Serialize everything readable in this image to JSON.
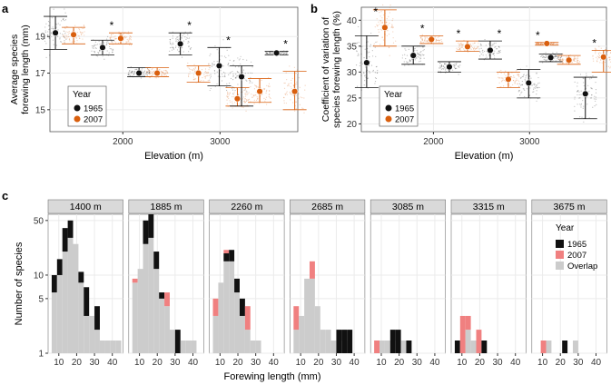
{
  "colors": {
    "y1965": "#111111",
    "y2007": "#d95f0e",
    "overlap": "#cccccc",
    "only2007": "#f08080",
    "strip": "#d9d9d9",
    "grid": "#ebebeb"
  },
  "chart_data": [
    {
      "panel": "a",
      "type": "scatter",
      "xlabel": "Elevation (m)",
      "ylabel_lines": [
        "Average species",
        "forewing length (mm)"
      ],
      "xlim": [
        1250,
        3800
      ],
      "ylim": [
        13.8,
        20.6
      ],
      "xticks": [
        2000,
        3000
      ],
      "yticks": [
        15,
        17,
        19
      ],
      "legend": {
        "title": "Year",
        "position": "bottom-left"
      },
      "series": [
        {
          "name": "1965",
          "x": [
            1400,
            1885,
            2260,
            2685,
            3085,
            3315,
            3675
          ],
          "mean": [
            19.2,
            18.4,
            17.0,
            18.6,
            17.4,
            16.8,
            18.1
          ],
          "ci_low": [
            18.3,
            18.0,
            16.8,
            18.0,
            16.3,
            15.2,
            18.0
          ],
          "ci_high": [
            20.1,
            18.8,
            17.3,
            19.2,
            18.4,
            17.4,
            18.2
          ]
        },
        {
          "name": "2007",
          "x": [
            1400,
            1885,
            2260,
            2685,
            3085,
            3315,
            3675
          ],
          "mean": [
            19.1,
            18.9,
            17.0,
            17.0,
            15.6,
            16.0,
            16.0
          ],
          "ci_low": [
            18.6,
            18.6,
            16.8,
            16.5,
            15.2,
            15.4,
            15.0
          ],
          "ci_high": [
            19.5,
            19.2,
            17.3,
            17.4,
            16.2,
            16.7,
            17.1
          ]
        }
      ],
      "significant": [
        false,
        true,
        false,
        true,
        true,
        false,
        true
      ],
      "star": "*"
    },
    {
      "panel": "b",
      "type": "scatter",
      "xlabel": "Elevation (m)",
      "ylabel_lines": [
        "Coefficient of variation of",
        "species forewing length (%)"
      ],
      "xlim": [
        1250,
        3800
      ],
      "ylim": [
        18.5,
        42.5
      ],
      "xticks": [
        2000,
        3000
      ],
      "yticks": [
        20,
        25,
        30,
        35,
        40
      ],
      "legend": {
        "title": "Year",
        "position": "bottom-left"
      },
      "series": [
        {
          "name": "1965",
          "x": [
            1400,
            1885,
            2260,
            2685,
            3085,
            3315,
            3675
          ],
          "mean": [
            31.8,
            33.2,
            31.0,
            34.2,
            27.9,
            32.8,
            25.8
          ],
          "ci_low": [
            27.0,
            31.5,
            30.0,
            32.5,
            25.0,
            32.0,
            21.0
          ],
          "ci_high": [
            37.0,
            35.0,
            32.0,
            36.0,
            30.5,
            33.5,
            29.0
          ]
        },
        {
          "name": "2007",
          "x": [
            1400,
            1885,
            2260,
            2685,
            3085,
            3315,
            3675
          ],
          "mean": [
            38.6,
            36.3,
            34.9,
            28.6,
            35.5,
            32.3,
            32.9
          ],
          "ci_low": [
            35.0,
            35.5,
            34.0,
            27.0,
            35.2,
            31.5,
            30.0
          ],
          "ci_high": [
            42.0,
            37.0,
            36.0,
            30.0,
            35.7,
            33.2,
            34.2
          ]
        }
      ],
      "significant": [
        true,
        true,
        true,
        true,
        true,
        false,
        true
      ],
      "star": "*"
    },
    {
      "panel": "c",
      "type": "bar",
      "subtype": "faceted histogram (log scale)",
      "xlabel": "Forewing length (mm)",
      "ylabel": "Number of species",
      "facets": [
        "1400 m",
        "1885 m",
        "2260 m",
        "2685 m",
        "3085 m",
        "3315 m",
        "3675 m"
      ],
      "xticks": [
        10,
        20,
        30,
        40
      ],
      "xlim": [
        4,
        46
      ],
      "yticks": [
        1,
        5,
        10,
        50
      ],
      "ylim": [
        1,
        60
      ],
      "bin_starts": [
        6,
        9,
        12,
        15,
        18,
        21,
        24,
        27,
        30,
        33,
        36,
        39,
        42
      ],
      "bin_width": 3,
      "legend": {
        "title": "Year",
        "entries": [
          "1965",
          "2007",
          "Overlap"
        ],
        "position": "right"
      },
      "series": [
        {
          "name": "Overlap",
          "values": [
            [
              6,
              10,
              20,
              30,
              25,
              8,
              3,
              3,
              2,
              1,
              1,
              1,
              1
            ],
            [
              8,
              12,
              25,
              30,
              12,
              5,
              4,
              2,
              1,
              1,
              1,
              1,
              0
            ],
            [
              3,
              8,
              15,
              15,
              6,
              3,
              2,
              1,
              1,
              0,
              0,
              0,
              0
            ],
            [
              2,
              3,
              9,
              9,
              4,
              2,
              2,
              1,
              1,
              1,
              0,
              0,
              0
            ],
            [
              0,
              1,
              1,
              1,
              1,
              1,
              0,
              0,
              0,
              0,
              0,
              0,
              0
            ],
            [
              0,
              1,
              2,
              1,
              1,
              0,
              0,
              0,
              0,
              0,
              0,
              0,
              0
            ],
            [
              0,
              0,
              1,
              0,
              0,
              0,
              0,
              1,
              0,
              0,
              0,
              0,
              0
            ]
          ]
        },
        {
          "name": "1965",
          "values": [
            [
              4,
              6,
              20,
              20,
              0,
              3,
              4,
              0,
              2,
              0,
              0,
              0,
              0
            ],
            [
              0,
              0,
              25,
              30,
              8,
              1,
              0,
              0,
              1,
              0,
              0,
              0,
              0
            ],
            [
              0,
              0,
              4,
              6,
              3,
              2,
              0,
              0,
              0,
              0,
              0,
              0,
              0
            ],
            [
              0,
              0,
              0,
              0,
              0,
              0,
              0,
              0,
              1,
              1,
              2,
              0,
              0
            ],
            [
              0,
              0,
              0,
              1,
              1,
              0,
              1,
              0,
              0,
              0,
              0,
              0,
              0
            ],
            [
              1,
              0,
              0,
              0,
              0,
              1,
              0,
              0,
              0,
              0,
              0,
              0,
              0
            ],
            [
              0,
              0,
              0,
              0,
              0,
              1,
              0,
              0,
              0,
              0,
              0,
              0,
              0
            ]
          ]
        },
        {
          "name": "2007",
          "values": [
            [
              0,
              0,
              0,
              0,
              0,
              0,
              0,
              0,
              0,
              0,
              0,
              0,
              0
            ],
            [
              1,
              0,
              0,
              0,
              0,
              0,
              2,
              0,
              0,
              0,
              0,
              0,
              0
            ],
            [
              2,
              0,
              2,
              0,
              0,
              0,
              2,
              0,
              0,
              0,
              0,
              0,
              0
            ],
            [
              2,
              0,
              0,
              6,
              0,
              0,
              0,
              0,
              0,
              0,
              0,
              0,
              0
            ],
            [
              1,
              0,
              0,
              0,
              0,
              0,
              0,
              0,
              0,
              0,
              0,
              0,
              0
            ],
            [
              0,
              2,
              1,
              0,
              1,
              0,
              0,
              0,
              0,
              0,
              0,
              0,
              0
            ],
            [
              0,
              1,
              0,
              0,
              0,
              0,
              0,
              0,
              0,
              0,
              0,
              0,
              0
            ]
          ]
        }
      ]
    }
  ]
}
